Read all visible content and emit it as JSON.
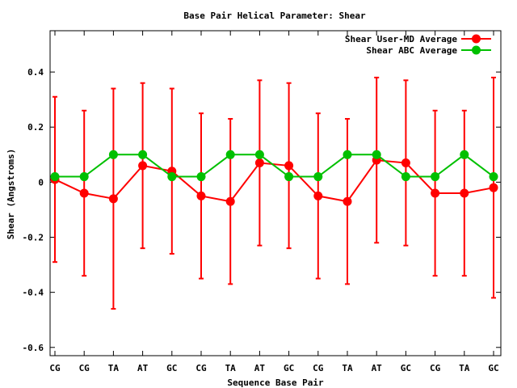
{
  "chart_data": {
    "type": "line",
    "title": "Base Pair Helical Parameter: Shear",
    "xlabel": "Sequence Base Pair",
    "ylabel": "Shear (Angstroms)",
    "categories": [
      "CG",
      "CG",
      "TA",
      "AT",
      "GC",
      "CG",
      "TA",
      "AT",
      "GC",
      "CG",
      "TA",
      "AT",
      "GC",
      "CG",
      "TA",
      "GC"
    ],
    "ylim": [
      -0.63,
      0.55
    ],
    "yticks": [
      -0.6,
      -0.4,
      -0.2,
      0,
      0.2,
      0.4
    ],
    "ytick_labels": [
      "-0.6",
      "-0.4",
      "-0.2",
      "0",
      "0.2",
      "0.4"
    ],
    "grid": false,
    "legend": "top-right",
    "series": [
      {
        "name": "Shear User-MD Average",
        "color": "#ff0000",
        "marker": "circle",
        "values": [
          0.01,
          -0.04,
          -0.06,
          0.06,
          0.04,
          -0.05,
          -0.07,
          0.07,
          0.06,
          -0.05,
          -0.07,
          0.08,
          0.07,
          -0.04,
          -0.04,
          -0.02
        ],
        "err_low": [
          -0.29,
          -0.34,
          -0.46,
          -0.24,
          -0.26,
          -0.35,
          -0.37,
          -0.23,
          -0.24,
          -0.35,
          -0.37,
          -0.22,
          -0.23,
          -0.34,
          -0.34,
          -0.42
        ],
        "err_high": [
          0.31,
          0.26,
          0.34,
          0.36,
          0.34,
          0.25,
          0.23,
          0.37,
          0.36,
          0.25,
          0.23,
          0.38,
          0.37,
          0.26,
          0.26,
          0.38
        ]
      },
      {
        "name": "Shear ABC Average",
        "color": "#00c000",
        "marker": "circle",
        "values": [
          0.02,
          0.02,
          0.1,
          0.1,
          0.02,
          0.02,
          0.1,
          0.1,
          0.02,
          0.02,
          0.1,
          0.1,
          0.02,
          0.02,
          0.1,
          0.02
        ]
      }
    ]
  }
}
